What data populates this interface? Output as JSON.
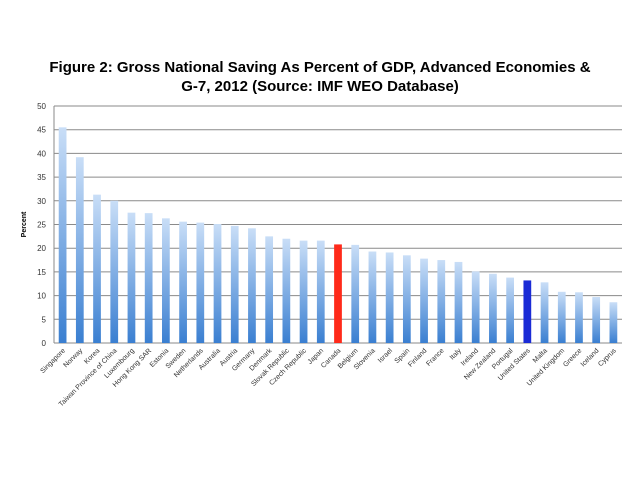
{
  "chart_data": {
    "type": "bar",
    "title_line1": "Figure 2: Gross National Saving As Percent of GDP, Advanced Economies &",
    "title_line2": "G-7, 2012 (Source: IMF WEO Database)",
    "ylabel": "Percent",
    "xlabel": "",
    "ylim": [
      0,
      50
    ],
    "yticks": [
      "0",
      "5",
      "10",
      "15",
      "20",
      "25",
      "30",
      "35",
      "40",
      "45",
      "50"
    ],
    "grid": true,
    "categories": [
      "Singapore",
      "Norway",
      "Korea",
      "Taiwan Province of China",
      "Luxembourg",
      "Hong Kong SAR",
      "Estonia",
      "Sweden",
      "Netherlands",
      "Australia",
      "Austria",
      "Germany",
      "Denmark",
      "Slovak Republic",
      "Czech Republic",
      "Japan",
      "Canada",
      "Belgium",
      "Slovenia",
      "Israel",
      "Spain",
      "Finland",
      "France",
      "Italy",
      "Ireland",
      "New Zealand",
      "Portugal",
      "United States",
      "Malta",
      "United Kingdom",
      "Greece",
      "Iceland",
      "Cyprus"
    ],
    "values": [
      45.5,
      39.2,
      31.3,
      30.0,
      27.5,
      27.4,
      26.3,
      25.6,
      25.4,
      25.1,
      24.7,
      24.2,
      22.5,
      22.0,
      21.6,
      21.6,
      20.8,
      20.7,
      19.3,
      19.1,
      18.5,
      17.8,
      17.5,
      17.1,
      15.1,
      14.6,
      13.8,
      13.2,
      12.8,
      10.8,
      10.7,
      9.7,
      8.6
    ],
    "highlight": {
      "Canada": "#ff2a1a",
      "United States": "#1a2bd6"
    },
    "bar_gradient": [
      "#c9def7",
      "#3a7fd1"
    ],
    "gridline_color": "#8a8a8a"
  }
}
